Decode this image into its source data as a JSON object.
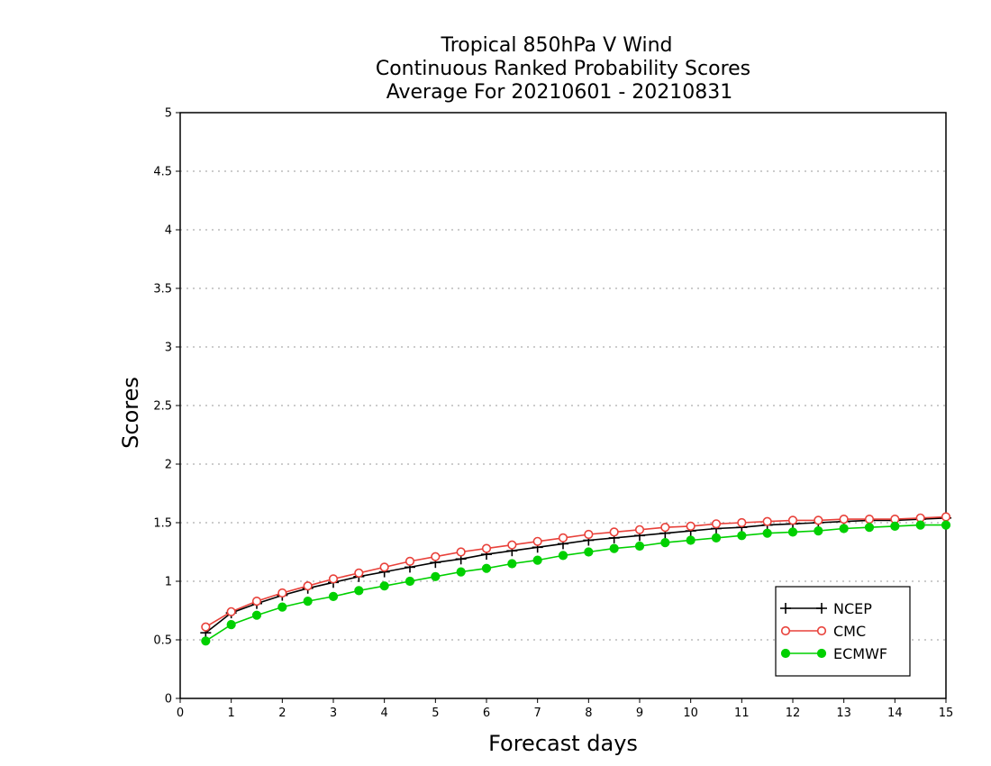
{
  "chart_data": {
    "type": "line",
    "title": [
      "Tropical 850hPa V Wind",
      "Continuous Ranked Probability Scores",
      "Average For 20210601 - 20210831"
    ],
    "xlabel": "Forecast days",
    "ylabel": "Scores",
    "xlim": [
      0,
      15
    ],
    "ylim": [
      0,
      5
    ],
    "xticks": [
      "0",
      "1",
      "2",
      "3",
      "4",
      "5",
      "6",
      "7",
      "8",
      "9",
      "10",
      "11",
      "12",
      "13",
      "14",
      "15"
    ],
    "yticks": [
      "0",
      "0.5",
      "1",
      "1.5",
      "2",
      "2.5",
      "3",
      "3.5",
      "4",
      "4.5",
      "5"
    ],
    "grid": "horizontal dotted",
    "legend_position": "bottom-right",
    "x": [
      0.5,
      1,
      1.5,
      2,
      2.5,
      3,
      3.5,
      4,
      4.5,
      5,
      5.5,
      6,
      6.5,
      7,
      7.5,
      8,
      8.5,
      9,
      9.5,
      10,
      10.5,
      11,
      11.5,
      12,
      12.5,
      13,
      13.5,
      14,
      14.5,
      15
    ],
    "series": [
      {
        "name": "NCEP",
        "color": "#000000",
        "marker": "plus",
        "values": [
          0.56,
          0.73,
          0.81,
          0.88,
          0.94,
          0.99,
          1.04,
          1.08,
          1.12,
          1.16,
          1.19,
          1.23,
          1.26,
          1.29,
          1.32,
          1.35,
          1.37,
          1.39,
          1.41,
          1.43,
          1.45,
          1.46,
          1.48,
          1.49,
          1.5,
          1.51,
          1.52,
          1.52,
          1.53,
          1.54
        ]
      },
      {
        "name": "CMC",
        "color": "#e8413a",
        "marker": "open-circle",
        "values": [
          0.61,
          0.74,
          0.83,
          0.9,
          0.96,
          1.02,
          1.07,
          1.12,
          1.17,
          1.21,
          1.25,
          1.28,
          1.31,
          1.34,
          1.37,
          1.4,
          1.42,
          1.44,
          1.46,
          1.47,
          1.49,
          1.5,
          1.51,
          1.52,
          1.52,
          1.53,
          1.53,
          1.53,
          1.54,
          1.55
        ]
      },
      {
        "name": "ECMWF",
        "color": "#00d000",
        "marker": "filled-circle",
        "values": [
          0.49,
          0.63,
          0.71,
          0.78,
          0.83,
          0.87,
          0.92,
          0.96,
          1.0,
          1.04,
          1.08,
          1.11,
          1.15,
          1.18,
          1.22,
          1.25,
          1.28,
          1.3,
          1.33,
          1.35,
          1.37,
          1.39,
          1.41,
          1.42,
          1.43,
          1.45,
          1.46,
          1.47,
          1.48,
          1.48
        ]
      }
    ]
  }
}
